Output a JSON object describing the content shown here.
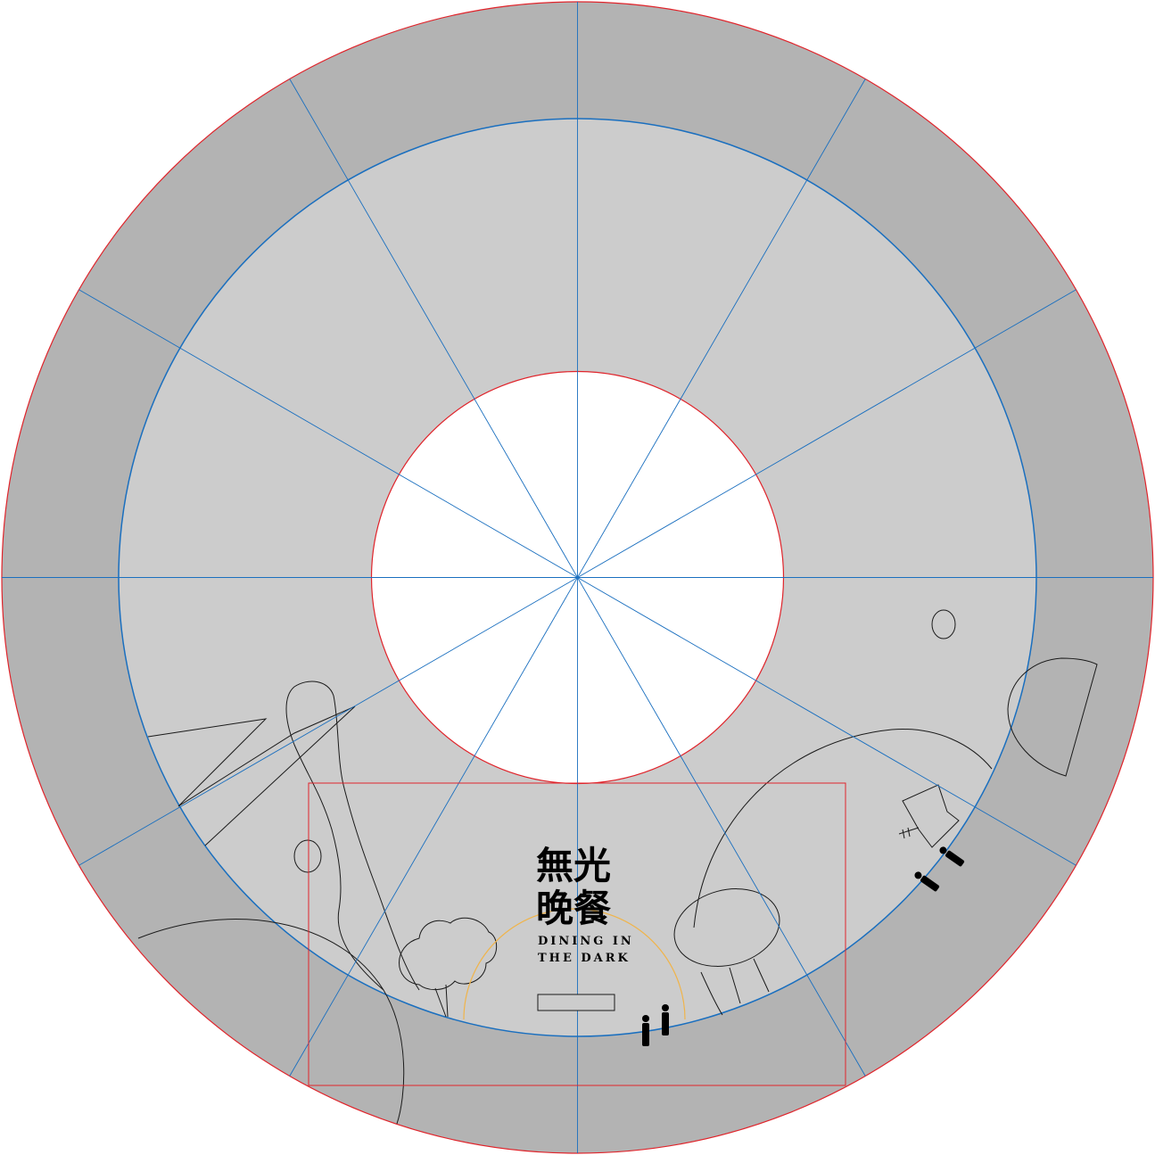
{
  "title": {
    "cjk_line1": "無光",
    "cjk_line2": "晚餐",
    "en_line1": "DINING IN",
    "en_line2": "THE DARK"
  },
  "colors": {
    "outer_ring": "#b3b3b3",
    "inner_ring": "#cccccc",
    "center": "#ffffff",
    "circle_red": "#e0242b",
    "guide_blue": "#1a6fbf",
    "arc_orange": "#f0b44a",
    "outline": "#1a1a1a"
  },
  "divisions": 12
}
